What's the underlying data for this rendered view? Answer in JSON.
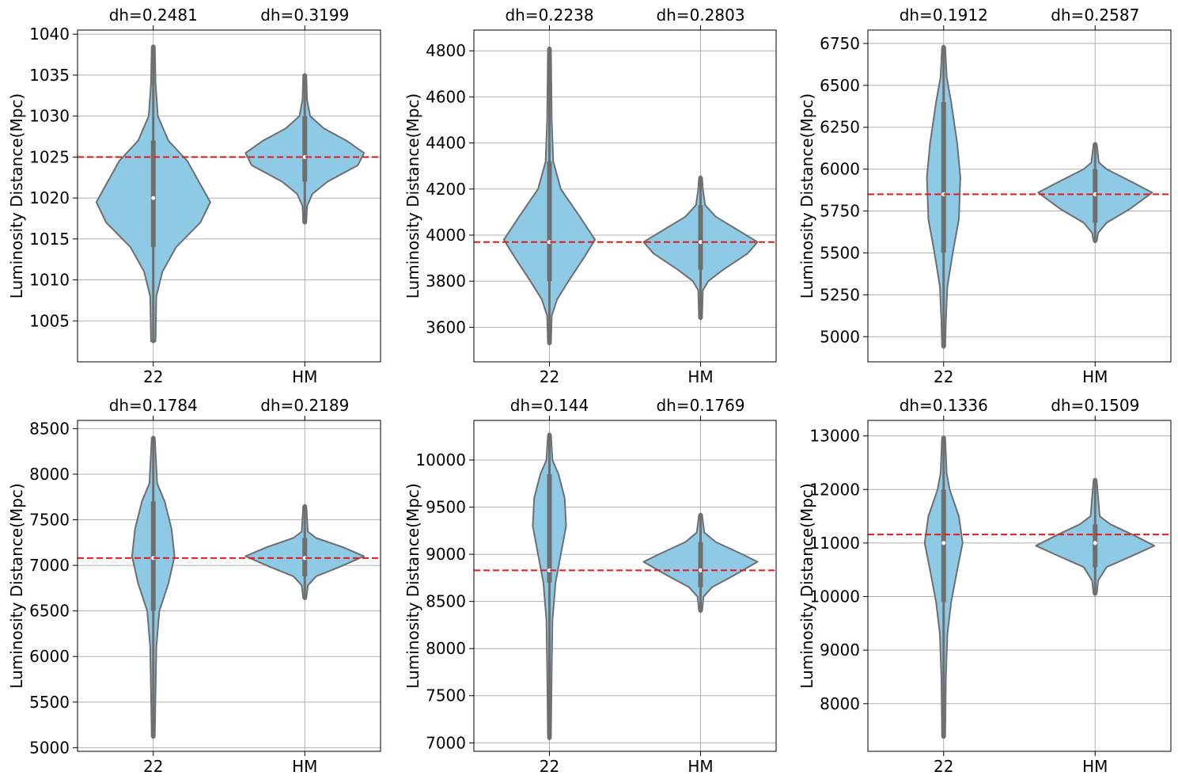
{
  "figure": {
    "violin_fill": "#8ecae6",
    "violin_edge": "#6e6e6e",
    "reference_color": "#e31a1c",
    "grid_color": "#b0b0b0"
  },
  "chart_data": [
    {
      "type": "violin",
      "categories": [
        "22",
        "HM"
      ],
      "top_labels": [
        "dh=0.2481",
        "dh=0.3199"
      ],
      "ylabel": "Luminosity Distance(Mpc)",
      "ylim": [
        1000,
        1040.5
      ],
      "yticks": [
        1005,
        1010,
        1015,
        1020,
        1025,
        1030,
        1035,
        1040
      ],
      "reference_line": 1025,
      "grid": true,
      "violins": [
        {
          "median": 1020,
          "min": 1002.5,
          "max": 1038.5,
          "profile": [
            [
              1002.5,
              0.03
            ],
            [
              1008,
              0.04
            ],
            [
              1011,
              0.12
            ],
            [
              1014,
              0.3
            ],
            [
              1017,
              0.62
            ],
            [
              1019.5,
              0.75
            ],
            [
              1022,
              0.6
            ],
            [
              1024.5,
              0.45
            ],
            [
              1027,
              0.2
            ],
            [
              1030,
              0.06
            ],
            [
              1034,
              0.03
            ],
            [
              1038.5,
              0.02
            ]
          ]
        },
        {
          "median": 1025,
          "min": 1017,
          "max": 1035,
          "profile": [
            [
              1017,
              0.02
            ],
            [
              1019,
              0.03
            ],
            [
              1020.5,
              0.1
            ],
            [
              1022,
              0.3
            ],
            [
              1024,
              0.7
            ],
            [
              1025.5,
              0.78
            ],
            [
              1027,
              0.55
            ],
            [
              1028.5,
              0.25
            ],
            [
              1030,
              0.07
            ],
            [
              1032,
              0.03
            ],
            [
              1035,
              0.02
            ]
          ]
        }
      ]
    },
    {
      "type": "violin",
      "categories": [
        "22",
        "HM"
      ],
      "top_labels": [
        "dh=0.2238",
        "dh=0.2803"
      ],
      "ylabel": "Luminosity Distance(Mpc)",
      "ylim": [
        3450,
        4890
      ],
      "yticks": [
        3600,
        3800,
        4000,
        4200,
        4400,
        4600,
        4800
      ],
      "reference_line": 3970,
      "grid": true,
      "violins": [
        {
          "median": 3970,
          "min": 3530,
          "max": 4810,
          "profile": [
            [
              3530,
              0.02
            ],
            [
              3650,
              0.03
            ],
            [
              3720,
              0.1
            ],
            [
              3800,
              0.25
            ],
            [
              3900,
              0.45
            ],
            [
              3980,
              0.6
            ],
            [
              4080,
              0.4
            ],
            [
              4200,
              0.15
            ],
            [
              4320,
              0.05
            ],
            [
              4500,
              0.03
            ],
            [
              4810,
              0.02
            ]
          ]
        },
        {
          "median": 3970,
          "min": 3640,
          "max": 4250,
          "profile": [
            [
              3640,
              0.02
            ],
            [
              3760,
              0.03
            ],
            [
              3800,
              0.1
            ],
            [
              3850,
              0.3
            ],
            [
              3920,
              0.62
            ],
            [
              3970,
              0.75
            ],
            [
              4020,
              0.5
            ],
            [
              4080,
              0.2
            ],
            [
              4130,
              0.06
            ],
            [
              4200,
              0.03
            ],
            [
              4250,
              0.02
            ]
          ]
        }
      ]
    },
    {
      "type": "violin",
      "categories": [
        "22",
        "HM"
      ],
      "top_labels": [
        "dh=0.1912",
        "dh=0.2587"
      ],
      "ylabel": "Luminosity Distance(Mpc)",
      "ylim": [
        4850,
        6830
      ],
      "yticks": [
        5000,
        5250,
        5500,
        5750,
        6000,
        6250,
        6500,
        6750
      ],
      "reference_line": 5850,
      "grid": true,
      "violins": [
        {
          "median": 5850,
          "min": 4940,
          "max": 6730,
          "profile": [
            [
              4940,
              0.02
            ],
            [
              5100,
              0.03
            ],
            [
              5300,
              0.05
            ],
            [
              5500,
              0.12
            ],
            [
              5700,
              0.2
            ],
            [
              5950,
              0.22
            ],
            [
              6150,
              0.18
            ],
            [
              6400,
              0.1
            ],
            [
              6550,
              0.04
            ],
            [
              6730,
              0.02
            ]
          ]
        },
        {
          "median": 5850,
          "min": 5570,
          "max": 6150,
          "profile": [
            [
              5570,
              0.02
            ],
            [
              5620,
              0.04
            ],
            [
              5680,
              0.15
            ],
            [
              5760,
              0.45
            ],
            [
              5860,
              0.75
            ],
            [
              5920,
              0.5
            ],
            [
              6000,
              0.15
            ],
            [
              6040,
              0.05
            ],
            [
              6150,
              0.02
            ]
          ]
        }
      ]
    },
    {
      "type": "violin",
      "categories": [
        "22",
        "HM"
      ],
      "top_labels": [
        "dh=0.1784",
        "dh=0.2189"
      ],
      "ylabel": "Luminosity Distance(Mpc)",
      "ylim": [
        4960,
        8590
      ],
      "yticks": [
        5000,
        5500,
        6000,
        6500,
        7000,
        7500,
        8000,
        8500
      ],
      "reference_line": 7080,
      "grid": true,
      "violins": [
        {
          "median": 7080,
          "min": 5120,
          "max": 8400,
          "profile": [
            [
              5120,
              0.02
            ],
            [
              5600,
              0.03
            ],
            [
              6100,
              0.04
            ],
            [
              6500,
              0.08
            ],
            [
              6800,
              0.2
            ],
            [
              7100,
              0.28
            ],
            [
              7400,
              0.24
            ],
            [
              7700,
              0.15
            ],
            [
              7900,
              0.05
            ],
            [
              8400,
              0.02
            ]
          ]
        },
        {
          "median": 7080,
          "min": 6640,
          "max": 7650,
          "profile": [
            [
              6640,
              0.02
            ],
            [
              6780,
              0.04
            ],
            [
              6880,
              0.15
            ],
            [
              6980,
              0.45
            ],
            [
              7100,
              0.78
            ],
            [
              7200,
              0.5
            ],
            [
              7300,
              0.15
            ],
            [
              7370,
              0.04
            ],
            [
              7650,
              0.02
            ]
          ]
        }
      ]
    },
    {
      "type": "violin",
      "categories": [
        "22",
        "HM"
      ],
      "top_labels": [
        "dh=0.144",
        "dh=0.1769"
      ],
      "ylabel": "Luminosity Distance(Mpc)",
      "ylim": [
        6910,
        10420
      ],
      "yticks": [
        7000,
        7500,
        8000,
        8500,
        9000,
        9500,
        10000
      ],
      "reference_line": 8830,
      "grid": true,
      "violins": [
        {
          "median": 8830,
          "min": 7050,
          "max": 10270,
          "profile": [
            [
              7050,
              0.02
            ],
            [
              7800,
              0.03
            ],
            [
              8300,
              0.04
            ],
            [
              8700,
              0.08
            ],
            [
              9000,
              0.15
            ],
            [
              9300,
              0.22
            ],
            [
              9600,
              0.2
            ],
            [
              9850,
              0.12
            ],
            [
              10000,
              0.04
            ],
            [
              10270,
              0.02
            ]
          ]
        },
        {
          "median": 8830,
          "min": 8400,
          "max": 9420,
          "profile": [
            [
              8400,
              0.02
            ],
            [
              8550,
              0.04
            ],
            [
              8650,
              0.15
            ],
            [
              8780,
              0.45
            ],
            [
              8920,
              0.75
            ],
            [
              9000,
              0.55
            ],
            [
              9130,
              0.2
            ],
            [
              9230,
              0.05
            ],
            [
              9420,
              0.02
            ]
          ]
        }
      ]
    },
    {
      "type": "violin",
      "categories": [
        "22",
        "HM"
      ],
      "top_labels": [
        "dh=0.1336",
        "dh=0.1509"
      ],
      "ylabel": "Luminosity Distance(Mpc)",
      "ylim": [
        7110,
        13290
      ],
      "yticks": [
        8000,
        9000,
        10000,
        11000,
        12000,
        13000
      ],
      "reference_line": 11160,
      "grid": true,
      "violins": [
        {
          "median": 11000,
          "min": 7380,
          "max": 12970,
          "profile": [
            [
              7380,
              0.02
            ],
            [
              8500,
              0.03
            ],
            [
              9300,
              0.05
            ],
            [
              9900,
              0.1
            ],
            [
              10500,
              0.18
            ],
            [
              11000,
              0.25
            ],
            [
              11500,
              0.2
            ],
            [
              12000,
              0.08
            ],
            [
              12300,
              0.04
            ],
            [
              12970,
              0.02
            ]
          ]
        },
        {
          "median": 11000,
          "min": 10050,
          "max": 12180,
          "profile": [
            [
              10050,
              0.02
            ],
            [
              10300,
              0.04
            ],
            [
              10550,
              0.15
            ],
            [
              10800,
              0.55
            ],
            [
              10950,
              0.78
            ],
            [
              11150,
              0.5
            ],
            [
              11350,
              0.2
            ],
            [
              11500,
              0.06
            ],
            [
              12180,
              0.02
            ]
          ]
        }
      ]
    }
  ]
}
